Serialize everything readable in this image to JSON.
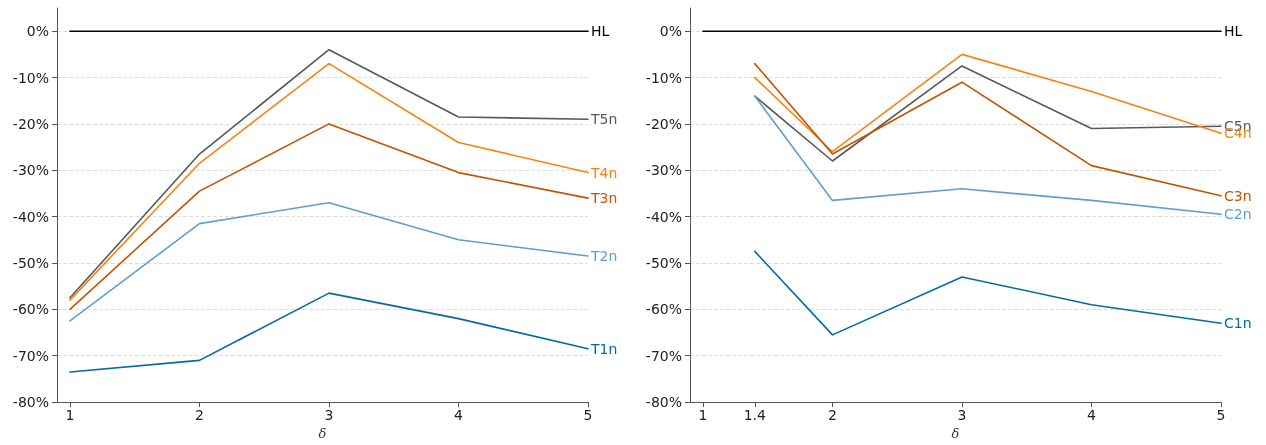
{
  "chart_data": [
    {
      "type": "line",
      "xlabel": "δ",
      "xlim": [
        0.9,
        5
      ],
      "xticks": [
        1,
        2,
        3,
        4,
        5
      ],
      "ylim": [
        -80,
        5
      ],
      "yticks": [
        {
          "value": 0,
          "label": "0%"
        },
        {
          "value": -10,
          "label": "-10%"
        },
        {
          "value": -20,
          "label": "-20%"
        },
        {
          "value": -30,
          "label": "-30%"
        },
        {
          "value": -40,
          "label": "-40%"
        },
        {
          "value": -50,
          "label": "-50%"
        },
        {
          "value": -60,
          "label": "-60%"
        },
        {
          "value": -70,
          "label": "-70%"
        },
        {
          "value": -80,
          "label": "-80%"
        }
      ],
      "grid": "y",
      "legend": false,
      "marker": "none",
      "line_style": "solid",
      "series": [
        {
          "name": "HL",
          "color": "#000000",
          "x": [
            1,
            2,
            3,
            4,
            5
          ],
          "values": [
            0,
            0,
            0,
            0,
            0
          ]
        },
        {
          "name": "T5n",
          "color": "#595959",
          "x": [
            1,
            2,
            3,
            4,
            5
          ],
          "values": [
            -57.5,
            -26.5,
            -4,
            -18.5,
            -19
          ]
        },
        {
          "name": "T4n",
          "color": "#ff800e",
          "x": [
            1,
            2,
            3,
            4,
            5
          ],
          "values": [
            -58,
            -28.5,
            -7,
            -24,
            -30.5
          ]
        },
        {
          "name": "T3n",
          "color": "#c85200",
          "x": [
            1,
            2,
            3,
            4,
            5
          ],
          "values": [
            -60,
            -34.5,
            -20,
            -30.5,
            -36
          ]
        },
        {
          "name": "T2n",
          "color": "#5f9ed1",
          "x": [
            1,
            2,
            3,
            4,
            5
          ],
          "values": [
            -62.5,
            -41.5,
            -37,
            -45,
            -48.5
          ]
        },
        {
          "name": "T1n",
          "color": "#006ba4",
          "x": [
            1,
            2,
            3,
            4,
            5
          ],
          "values": [
            -73.5,
            -71,
            -56.5,
            -62,
            -68.5
          ]
        }
      ]
    },
    {
      "type": "line",
      "xlabel": "δ",
      "xlim": [
        0.9,
        5
      ],
      "xticks": [
        1,
        1.4,
        2,
        3,
        4,
        5
      ],
      "ylim": [
        -80,
        5
      ],
      "yticks": [
        {
          "value": 0,
          "label": "0%"
        },
        {
          "value": -10,
          "label": "-10%"
        },
        {
          "value": -20,
          "label": "-20%"
        },
        {
          "value": -30,
          "label": "-30%"
        },
        {
          "value": -40,
          "label": "-40%"
        },
        {
          "value": -50,
          "label": "-50%"
        },
        {
          "value": -60,
          "label": "-60%"
        },
        {
          "value": -70,
          "label": "-70%"
        },
        {
          "value": -80,
          "label": "-80%"
        }
      ],
      "grid": "y",
      "legend": false,
      "marker": "none",
      "line_style": "solid",
      "series": [
        {
          "name": "HL",
          "color": "#000000",
          "x": [
            1,
            2,
            3,
            4,
            5
          ],
          "values": [
            0,
            0,
            0,
            0,
            0
          ]
        },
        {
          "name": "C5n",
          "color": "#595959",
          "x": [
            1.4,
            2,
            3,
            4,
            5
          ],
          "values": [
            -14,
            -28,
            -7.5,
            -21,
            -20.5
          ]
        },
        {
          "name": "C4n",
          "color": "#ff800e",
          "x": [
            1.4,
            2,
            3,
            4,
            5
          ],
          "values": [
            -10,
            -26,
            -5,
            -13,
            -22
          ]
        },
        {
          "name": "C3n",
          "color": "#c85200",
          "x": [
            1.4,
            2,
            3,
            4,
            5
          ],
          "values": [
            -7,
            -26.5,
            -11,
            -29,
            -35.5
          ]
        },
        {
          "name": "C2n",
          "color": "#5f9ed1",
          "x": [
            1.4,
            2,
            3,
            4,
            5
          ],
          "values": [
            -14,
            -36.5,
            -34,
            -36.5,
            -39.5
          ]
        },
        {
          "name": "C1n",
          "color": "#006ba4",
          "x": [
            1.4,
            2,
            3,
            4,
            5
          ],
          "values": [
            -47.5,
            -65.5,
            -53,
            -59,
            -63
          ]
        }
      ]
    }
  ]
}
